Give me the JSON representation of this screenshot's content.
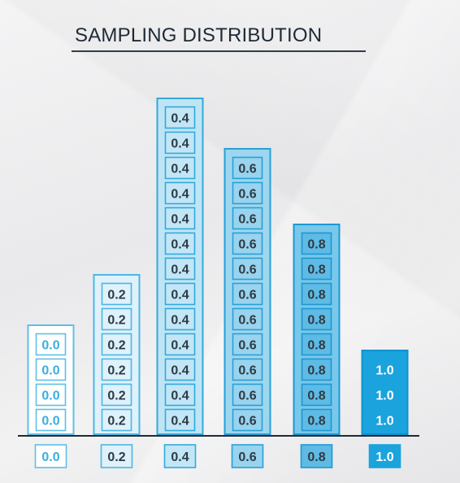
{
  "chart_data": {
    "type": "bar",
    "title": "SAMPLING DISTRIBUTION",
    "categories": [
      "0.0",
      "0.2",
      "0.4",
      "0.6",
      "0.8",
      "1.0"
    ],
    "values": [
      4,
      6,
      13,
      11,
      8,
      3
    ],
    "ylim": [
      0,
      13
    ],
    "grid": false,
    "colors": {
      "outline": [
        "#5fbfe6",
        "#4db6e3",
        "#33a9dc",
        "#27a0d6",
        "#1d98d1",
        "#1191cf"
      ],
      "bar_fill": [
        "#ffffff",
        "#dff1fa",
        "#bfe5f5",
        "#9fd6ef",
        "#79c7ea",
        "#1aa3dc"
      ],
      "cell_fill": [
        "#ffffff",
        "#dff1fa",
        "#c3e6f6",
        "#99d3ee",
        "#5ebbe5",
        "#1aa3dc"
      ],
      "text": [
        "#3aaee0",
        "#2d3b45",
        "#2d3b45",
        "#2d3b45",
        "#2d3b45",
        "#ffffff"
      ],
      "axis": "#1e2a35"
    }
  }
}
